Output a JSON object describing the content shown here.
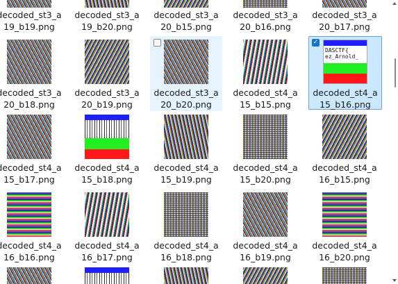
{
  "files": [
    {
      "name_line1": "decoded_st3_a",
      "name_line2": "19_b19.png"
    },
    {
      "name_line1": "decoded_st3_a",
      "name_line2": "19_b20.png"
    },
    {
      "name_line1": "decoded_st3_a",
      "name_line2": "20_b15.png"
    },
    {
      "name_line1": "decoded_st3_a",
      "name_line2": "20_b16.png"
    },
    {
      "name_line1": "decoded_st3_a",
      "name_line2": "20_b17.png"
    },
    {
      "name_line1": "decoded_st3_a",
      "name_line2": "20_b18.png"
    },
    {
      "name_line1": "decoded_st3_a",
      "name_line2": "20_b19.png"
    },
    {
      "name_line1": "decoded_st3_a",
      "name_line2": "20_b20.png"
    },
    {
      "name_line1": "decoded_st4_a",
      "name_line2": "15_b15.png"
    },
    {
      "name_line1": "decoded_st4_a",
      "name_line2": "15_b16.png"
    },
    {
      "name_line1": "decoded_st4_a",
      "name_line2": "15_b17.png"
    },
    {
      "name_line1": "decoded_st4_a",
      "name_line2": "15_b18.png"
    },
    {
      "name_line1": "decoded_st4_a",
      "name_line2": "15_b19.png"
    },
    {
      "name_line1": "decoded_st4_a",
      "name_line2": "15_b20.png"
    },
    {
      "name_line1": "decoded_st4_a",
      "name_line2": "16_b15.png"
    },
    {
      "name_line1": "decoded_st4_a",
      "name_line2": "16_b16.png"
    },
    {
      "name_line1": "decoded_st4_a",
      "name_line2": "16_b17.png"
    },
    {
      "name_line1": "decoded_st4_a",
      "name_line2": "16_b18.png"
    },
    {
      "name_line1": "decoded_st4_a",
      "name_line2": "16_b19.png"
    },
    {
      "name_line1": "decoded_st4_a",
      "name_line2": "16_b20.png"
    }
  ],
  "flag_thumbnail": {
    "line1": "DASCTF{",
    "line2": "ez_Arnold_"
  },
  "checkbox_mark": "✓"
}
